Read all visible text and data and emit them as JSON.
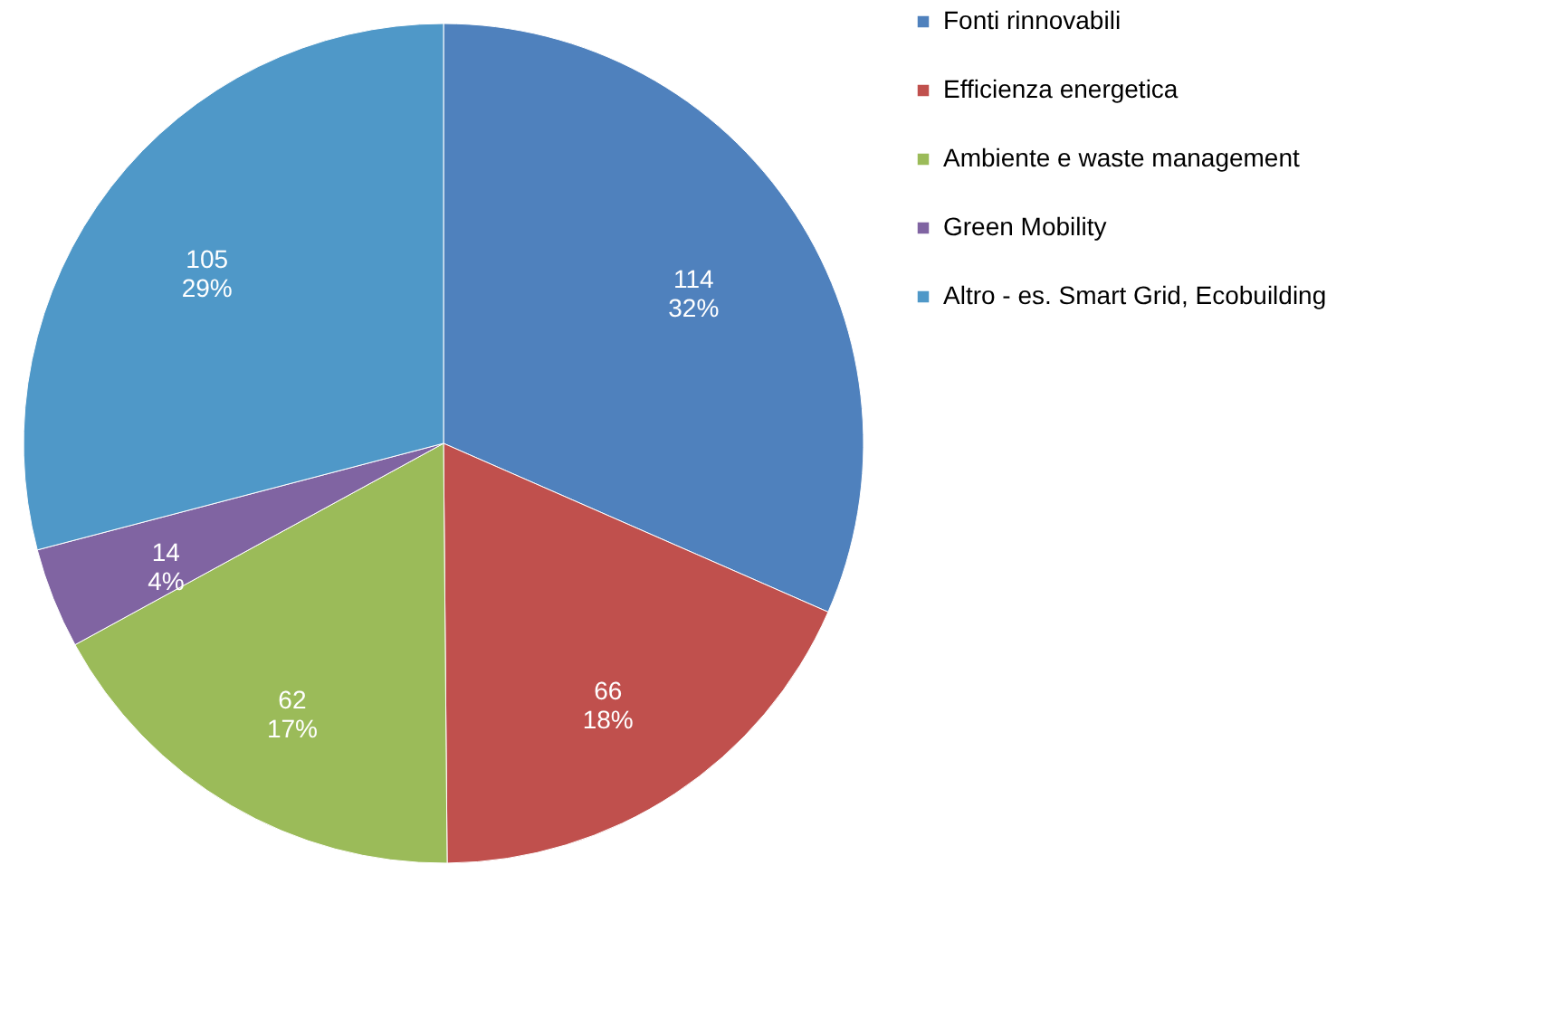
{
  "chart_data": {
    "type": "pie",
    "categories": [
      "Fonti rinnovabili",
      "Efficienza energetica",
      "Ambiente e waste management",
      "Green Mobility",
      "Altro - es. Smart Grid, Ecobuilding"
    ],
    "values": [
      114,
      66,
      62,
      14,
      105
    ],
    "colors": [
      "#4f81bd",
      "#c0504d",
      "#9bbb59",
      "#8064a2",
      "#4f98c8"
    ],
    "value_labels": [
      "114\n32%",
      "66\n18%",
      "62\n17%",
      "14\n4%",
      "105\n29%"
    ],
    "legend": "right"
  }
}
